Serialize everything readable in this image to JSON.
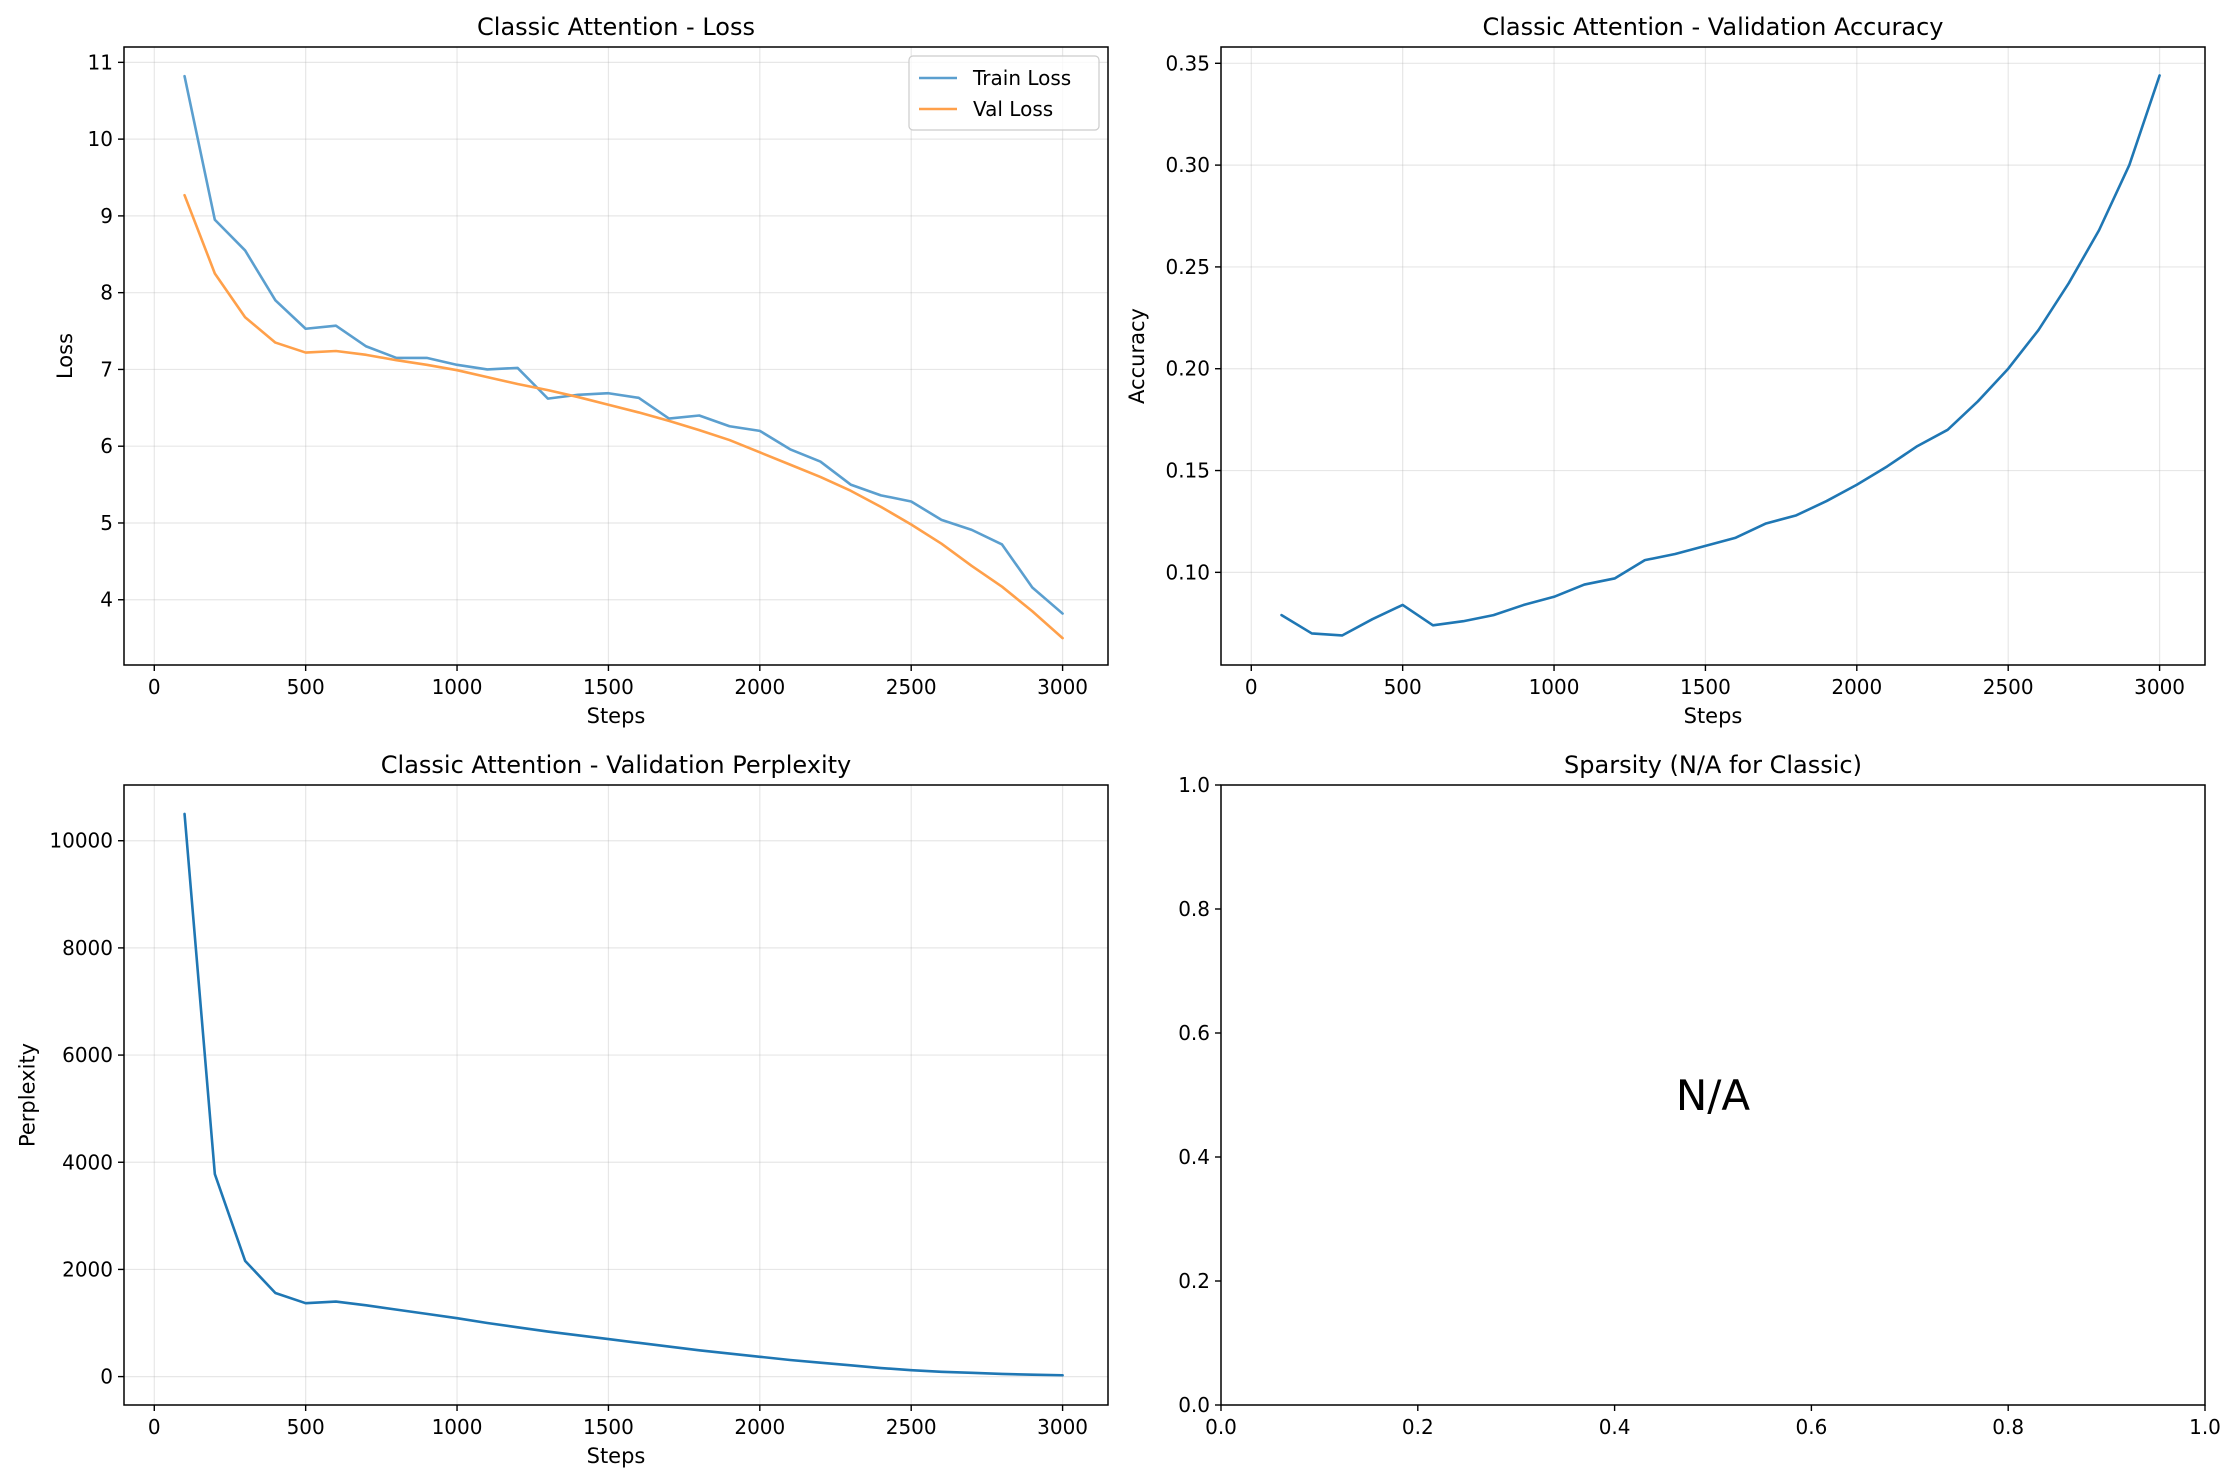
{
  "chart_data": [
    {
      "id": "loss",
      "type": "line",
      "title": "Classic Attention - Loss",
      "xlabel": "Steps",
      "ylabel": "Loss",
      "xlim": [
        -100,
        3150
      ],
      "ylim": [
        3.15,
        11.2
      ],
      "xticks": [
        0,
        500,
        1000,
        1500,
        2000,
        2500,
        3000
      ],
      "yticks": [
        4,
        5,
        6,
        7,
        8,
        9,
        10,
        11
      ],
      "grid": true,
      "legend": "upper right",
      "series": [
        {
          "name": "Train Loss",
          "color": "#5b9fcf",
          "x": [
            100,
            200,
            300,
            400,
            500,
            600,
            700,
            800,
            900,
            1000,
            1100,
            1200,
            1300,
            1400,
            1500,
            1600,
            1700,
            1800,
            1900,
            2000,
            2100,
            2200,
            2300,
            2400,
            2500,
            2600,
            2700,
            2800,
            2900,
            3000
          ],
          "y": [
            10.82,
            8.95,
            8.55,
            7.9,
            7.53,
            7.57,
            7.3,
            7.15,
            7.15,
            7.06,
            7.0,
            7.02,
            6.62,
            6.67,
            6.69,
            6.63,
            6.36,
            6.4,
            6.26,
            6.2,
            5.96,
            5.8,
            5.5,
            5.36,
            5.28,
            5.04,
            4.91,
            4.72,
            4.16,
            3.82
          ]
        },
        {
          "name": "Val Loss",
          "color": "#ffa04a",
          "x": [
            100,
            200,
            300,
            400,
            500,
            600,
            700,
            800,
            900,
            1000,
            1100,
            1200,
            1300,
            1400,
            1500,
            1600,
            1700,
            1800,
            1900,
            2000,
            2100,
            2200,
            2300,
            2400,
            2500,
            2600,
            2700,
            2800,
            2900,
            3000
          ],
          "y": [
            9.27,
            8.25,
            7.68,
            7.35,
            7.22,
            7.24,
            7.19,
            7.12,
            7.06,
            6.99,
            6.9,
            6.81,
            6.73,
            6.64,
            6.54,
            6.44,
            6.33,
            6.21,
            6.08,
            5.92,
            5.76,
            5.6,
            5.42,
            5.21,
            4.98,
            4.73,
            4.44,
            4.17,
            3.85,
            3.5
          ]
        }
      ]
    },
    {
      "id": "acc",
      "type": "line",
      "title": "Classic Attention - Validation Accuracy",
      "xlabel": "Steps",
      "ylabel": "Accuracy",
      "xlim": [
        -100,
        3150
      ],
      "ylim": [
        0.0545,
        0.358
      ],
      "xticks": [
        0,
        500,
        1000,
        1500,
        2000,
        2500,
        3000
      ],
      "yticks": [
        0.1,
        0.15,
        0.2,
        0.25,
        0.3,
        0.35
      ],
      "ytick_format": 2,
      "grid": true,
      "series": [
        {
          "color": "#1f77b4",
          "x": [
            100,
            200,
            300,
            400,
            500,
            600,
            700,
            800,
            900,
            1000,
            1100,
            1200,
            1300,
            1400,
            1500,
            1600,
            1700,
            1800,
            1900,
            2000,
            2100,
            2200,
            2300,
            2400,
            2500,
            2600,
            2700,
            2800,
            2900,
            3000
          ],
          "y": [
            0.079,
            0.07,
            0.069,
            0.077,
            0.084,
            0.074,
            0.076,
            0.079,
            0.084,
            0.088,
            0.094,
            0.097,
            0.106,
            0.109,
            0.113,
            0.117,
            0.124,
            0.128,
            0.135,
            0.143,
            0.152,
            0.162,
            0.17,
            0.184,
            0.2,
            0.219,
            0.242,
            0.268,
            0.3,
            0.344
          ]
        }
      ]
    },
    {
      "id": "ppl",
      "type": "line",
      "title": "Classic Attention - Validation Perplexity",
      "xlabel": "Steps",
      "ylabel": "Perplexity",
      "xlim": [
        -100,
        3150
      ],
      "ylim": [
        -530,
        11040
      ],
      "xticks": [
        0,
        500,
        1000,
        1500,
        2000,
        2500,
        3000
      ],
      "yticks": [
        0,
        2000,
        4000,
        6000,
        8000,
        10000
      ],
      "grid": true,
      "series": [
        {
          "color": "#1f77b4",
          "x": [
            100,
            200,
            300,
            400,
            500,
            600,
            700,
            800,
            900,
            1000,
            1100,
            1200,
            1300,
            1400,
            1500,
            1600,
            1700,
            1800,
            1900,
            2000,
            2100,
            2200,
            2300,
            2400,
            2500,
            2600,
            2700,
            2800,
            2900,
            3000
          ],
          "y": [
            10500,
            3780,
            2160,
            1560,
            1370,
            1400,
            1330,
            1250,
            1170,
            1090,
            1000,
            920,
            840,
            770,
            700,
            630,
            560,
            490,
            430,
            370,
            310,
            260,
            210,
            160,
            120,
            90,
            70,
            50,
            35,
            25
          ]
        }
      ]
    },
    {
      "id": "sparsity",
      "type": "line",
      "title": "Sparsity (N/A for Classic)",
      "xlim": [
        0,
        1
      ],
      "ylim": [
        0,
        1
      ],
      "xticks": [
        0.0,
        0.2,
        0.4,
        0.6,
        0.8,
        1.0
      ],
      "yticks": [
        0.0,
        0.2,
        0.4,
        0.6,
        0.8,
        1.0
      ],
      "xtick_format": 1,
      "ytick_format": 1,
      "grid": false,
      "annotation": "N/A",
      "series": []
    }
  ]
}
